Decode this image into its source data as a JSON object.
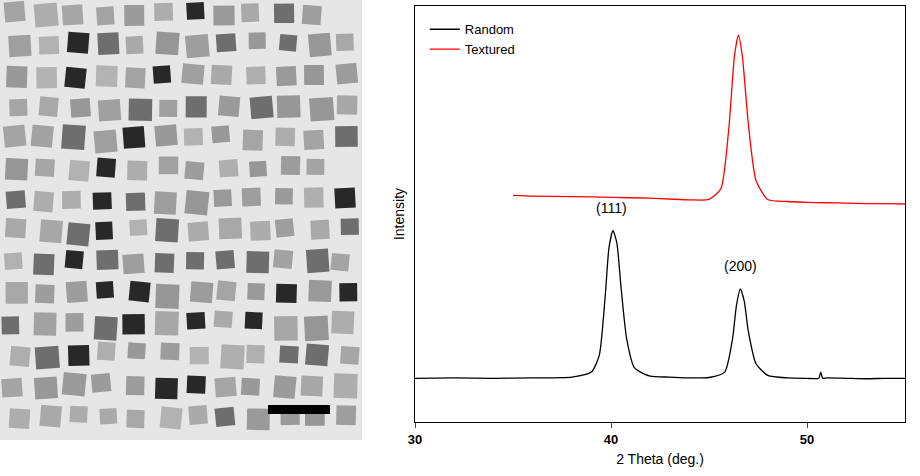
{
  "chart_data": {
    "type": "line",
    "x_label": "2 Theta (deg.)",
    "y_label": "Intensity",
    "xlim": [
      30,
      55
    ],
    "xticks": [
      30,
      40,
      50
    ],
    "ylim": [
      0,
      100
    ],
    "tick_labels": "x",
    "grid": false,
    "legend": "top-left",
    "series": [
      {
        "name": "Random",
        "color": "#000000",
        "x": [
          30,
          32,
          34,
          36,
          38,
          39,
          39.4,
          39.7,
          39.9,
          40.1,
          40.3,
          40.5,
          40.8,
          41.2,
          42,
          43,
          44,
          45,
          45.8,
          46.2,
          46.4,
          46.6,
          46.8,
          47.0,
          47.4,
          48,
          49,
          50,
          50.6,
          50.7,
          50.8,
          51,
          52,
          53,
          54,
          55
        ],
        "values": [
          10.5,
          10.6,
          10.5,
          10.6,
          10.8,
          12,
          16,
          30,
          42,
          46,
          43,
          33,
          20,
          13,
          11,
          10.8,
          10.6,
          10.7,
          12,
          20,
          28,
          32,
          29,
          22,
          14,
          11.2,
          10.6,
          10.5,
          10.5,
          12,
          10.5,
          10.6,
          10.5,
          10.4,
          10.5,
          10.5
        ]
      },
      {
        "name": "Textured",
        "color": "#ff0000",
        "x": [
          35,
          36,
          38,
          40,
          42,
          43,
          44,
          45,
          45.6,
          46.0,
          46.3,
          46.5,
          46.7,
          47.0,
          47.4,
          48,
          49,
          50,
          51,
          52,
          53,
          54,
          55
        ],
        "values": [
          54.5,
          54.3,
          54.2,
          54,
          53.8,
          53.6,
          53.4,
          53.5,
          56,
          70,
          88,
          93,
          88,
          72,
          58,
          53.5,
          53,
          52.8,
          52.7,
          52.6,
          52.5,
          52.5,
          52.4
        ]
      }
    ],
    "annotations": [
      {
        "text": "(111)",
        "x": 40.0,
        "y": 49
      },
      {
        "text": "(200)",
        "x": 46.6,
        "y": 35
      }
    ]
  }
}
